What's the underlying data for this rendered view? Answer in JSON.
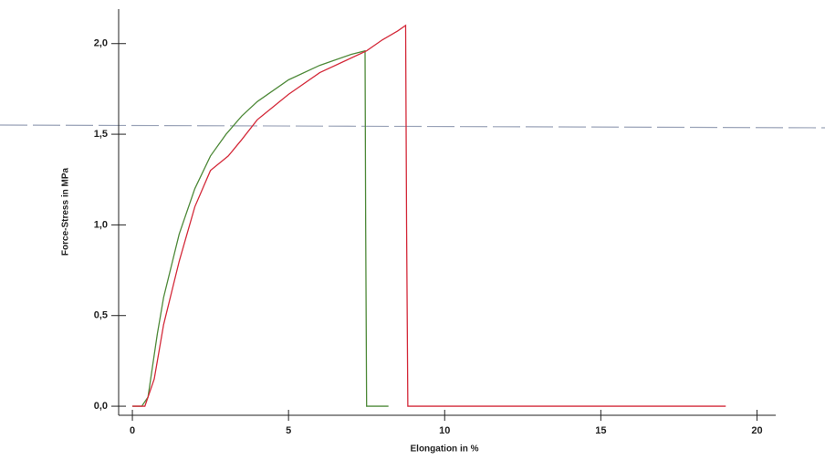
{
  "chart_data": {
    "type": "line",
    "x_label": "Elongation in %",
    "y_label": "Force-Stress in MPa",
    "xlim": [
      -0.44,
      20.6
    ],
    "ylim": [
      -0.05,
      2.19
    ],
    "xticks": [
      0,
      5,
      10,
      15,
      20
    ],
    "yticks": [
      {
        "value": 0,
        "label": "0,0"
      },
      {
        "value": 0.5,
        "label": "0,5"
      },
      {
        "value": 1.0,
        "label": "1,0"
      },
      {
        "value": 1.5,
        "label": "1,5"
      },
      {
        "value": 2.0,
        "label": "2,0"
      }
    ],
    "series": [
      {
        "color": "#4f8a3a",
        "x": [
          0,
          0.3,
          0.5,
          0.8,
          1,
          1.5,
          2,
          2.5,
          3,
          3.5,
          4,
          5,
          6,
          7,
          7.45,
          7.47,
          7.5,
          8.2
        ],
        "values": [
          0,
          0,
          0.05,
          0.4,
          0.6,
          0.95,
          1.2,
          1.38,
          1.5,
          1.6,
          1.68,
          1.8,
          1.88,
          1.94,
          1.96,
          1.0,
          0,
          0
        ]
      },
      {
        "color": "#d42a3a",
        "x": [
          0,
          0.4,
          0.7,
          1,
          1.5,
          2,
          2.5,
          3.07,
          3.5,
          4,
          5,
          6,
          7,
          7.5,
          8,
          8.5,
          8.75,
          8.78,
          8.82,
          19
        ],
        "values": [
          0,
          0,
          0.15,
          0.45,
          0.8,
          1.1,
          1.3,
          1.38,
          1.47,
          1.58,
          1.72,
          1.84,
          1.92,
          1.96,
          2.02,
          2.07,
          2.1,
          1.0,
          0,
          0
        ]
      }
    ]
  }
}
